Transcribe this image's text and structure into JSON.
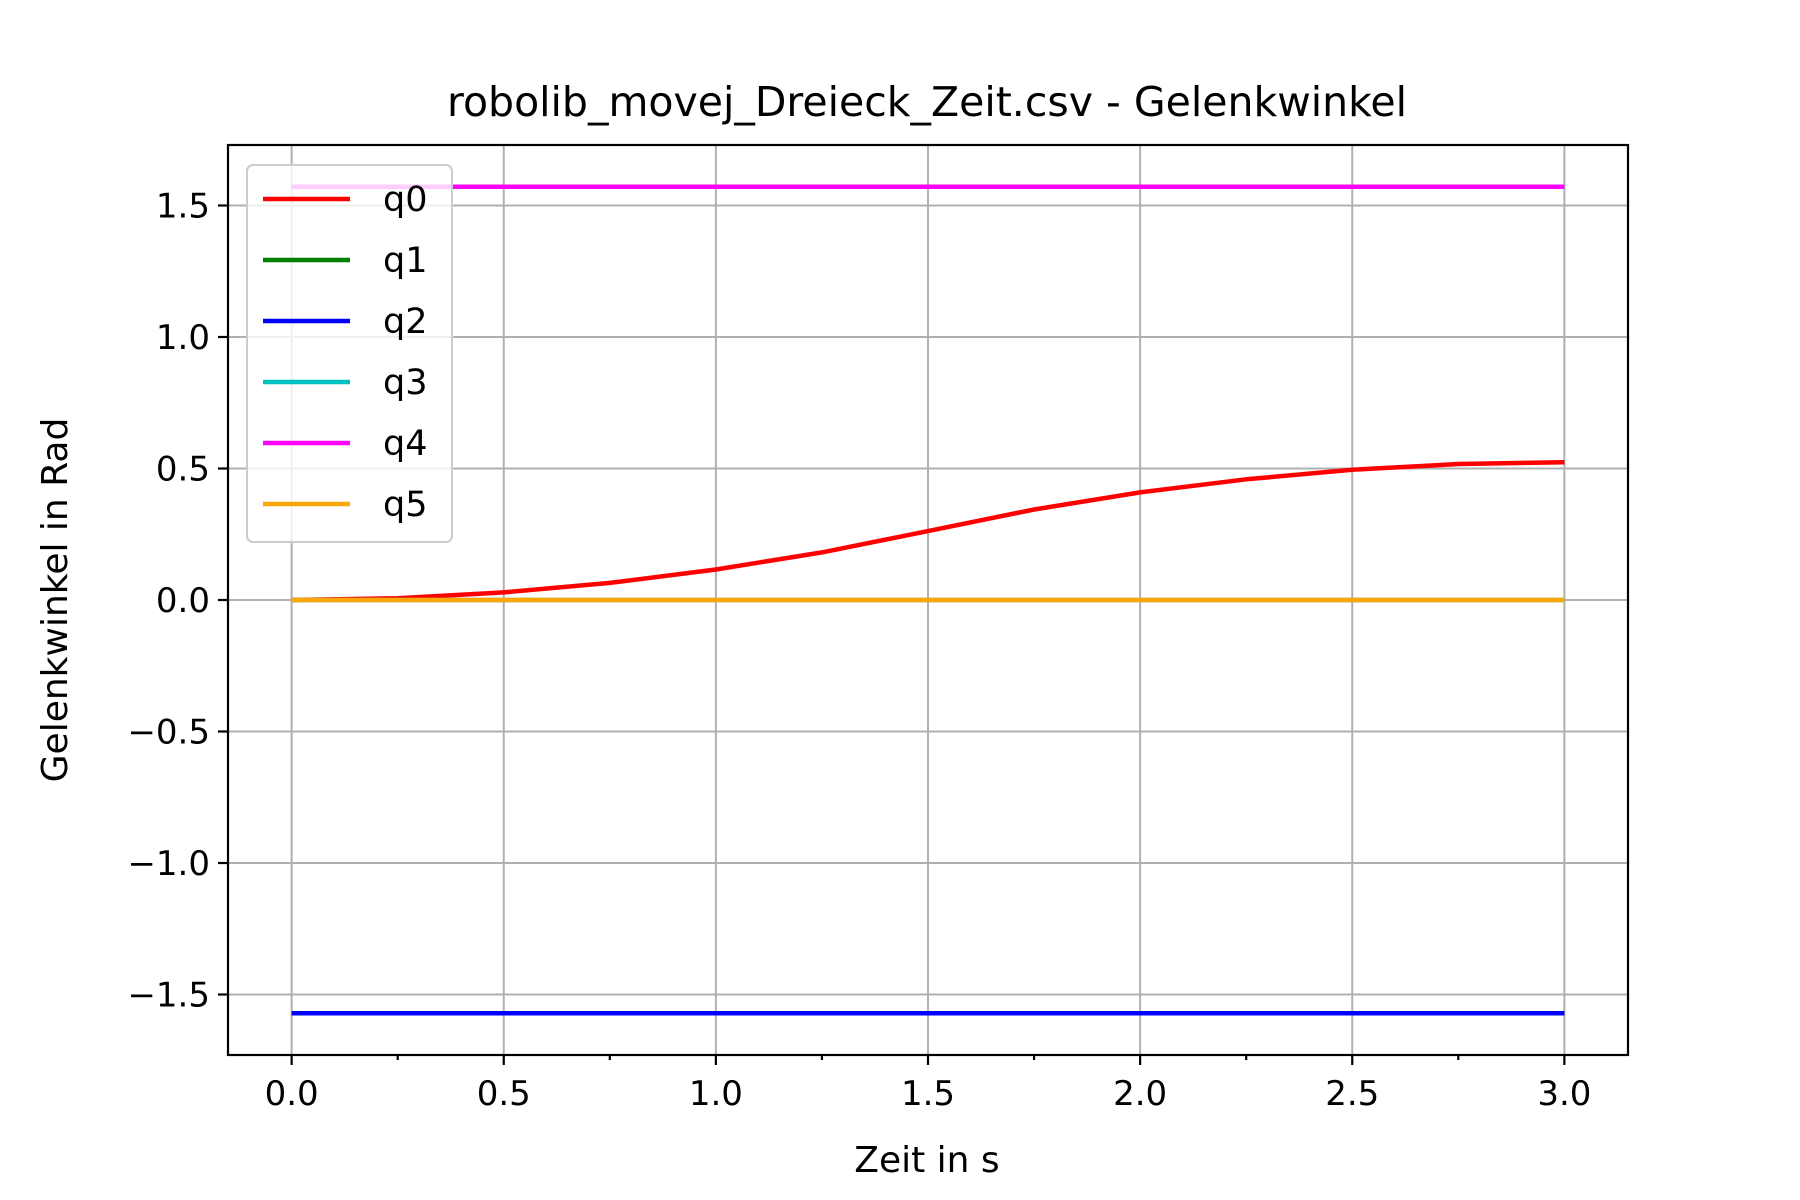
{
  "chart_data": {
    "type": "line",
    "title": "robolib_movej_Dreieck_Zeit.csv - Gelenkwinkel",
    "xlabel": "Zeit in s",
    "ylabel": "Gelenkwinkel in Rad",
    "xlim": [
      -0.15,
      3.15
    ],
    "ylim": [
      -1.73,
      1.73
    ],
    "xticks": [
      0.0,
      0.5,
      1.0,
      1.5,
      2.0,
      2.5,
      3.0
    ],
    "xtick_labels": [
      "0.0",
      "0.5",
      "1.0",
      "1.5",
      "2.0",
      "2.5",
      "3.0"
    ],
    "xminor_ticks": [
      0.25,
      0.75,
      1.25,
      1.75,
      2.25,
      2.75
    ],
    "yticks": [
      1.5,
      1.0,
      0.5,
      0.0,
      -0.5,
      -1.0,
      -1.5
    ],
    "ytick_labels": [
      "1.5",
      "1.0",
      "0.5",
      "0.0",
      "−0.5",
      "−1.0",
      "−1.5"
    ],
    "grid": true,
    "legend_position": "top-left",
    "x": [
      0.0,
      0.25,
      0.5,
      0.75,
      1.0,
      1.25,
      1.5,
      1.75,
      2.0,
      2.25,
      2.5,
      2.75,
      3.0
    ],
    "series": [
      {
        "name": "q0",
        "color": "#ff0000",
        "values": [
          0.0,
          0.007,
          0.029,
          0.065,
          0.116,
          0.181,
          0.262,
          0.344,
          0.409,
          0.459,
          0.495,
          0.517,
          0.524
        ]
      },
      {
        "name": "q1",
        "color": "#008000",
        "values": [
          -1.571,
          -1.571,
          -1.571,
          -1.571,
          -1.571,
          -1.571,
          -1.571,
          -1.571,
          -1.571,
          -1.571,
          -1.571,
          -1.571,
          -1.571
        ]
      },
      {
        "name": "q2",
        "color": "#0000ff",
        "values": [
          -1.571,
          -1.571,
          -1.571,
          -1.571,
          -1.571,
          -1.571,
          -1.571,
          -1.571,
          -1.571,
          -1.571,
          -1.571,
          -1.571,
          -1.571
        ]
      },
      {
        "name": "q3",
        "color": "#00bfbf",
        "values": [
          0.0,
          0.0,
          0.0,
          0.0,
          0.0,
          0.0,
          0.0,
          0.0,
          0.0,
          0.0,
          0.0,
          0.0,
          0.0
        ]
      },
      {
        "name": "q4",
        "color": "#ff00ff",
        "values": [
          1.571,
          1.571,
          1.571,
          1.571,
          1.571,
          1.571,
          1.571,
          1.571,
          1.571,
          1.571,
          1.571,
          1.571,
          1.571
        ]
      },
      {
        "name": "q5",
        "color": "#ffa500",
        "values": [
          0.0,
          0.0,
          0.0,
          0.0,
          0.0,
          0.0,
          0.0,
          0.0,
          0.0,
          0.0,
          0.0,
          0.0,
          0.0
        ]
      }
    ]
  }
}
